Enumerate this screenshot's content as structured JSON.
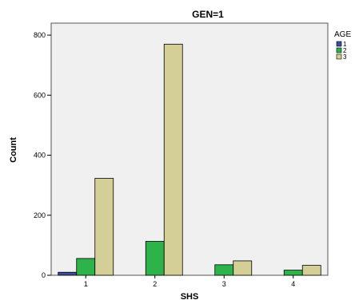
{
  "chart_data": {
    "type": "bar",
    "title": "GEN=1",
    "xlabel": "SHS",
    "ylabel": "Count",
    "categories": [
      "1",
      "2",
      "3",
      "4"
    ],
    "ylim": [
      0,
      840
    ],
    "yticks": [
      0,
      200,
      400,
      600,
      800
    ],
    "ytick_labels": [
      "0",
      "200",
      "400",
      "600",
      "800"
    ],
    "grid": false,
    "legend_title": "AGE",
    "legend_position": "right",
    "series": [
      {
        "name": "1",
        "color": "#3a4fa0",
        "values": [
          10,
          0,
          0,
          0
        ]
      },
      {
        "name": "2",
        "color": "#2db34a",
        "values": [
          56,
          113,
          35,
          17
        ]
      },
      {
        "name": "3",
        "color": "#d4cf96",
        "values": [
          323,
          770,
          48,
          33
        ]
      }
    ]
  }
}
